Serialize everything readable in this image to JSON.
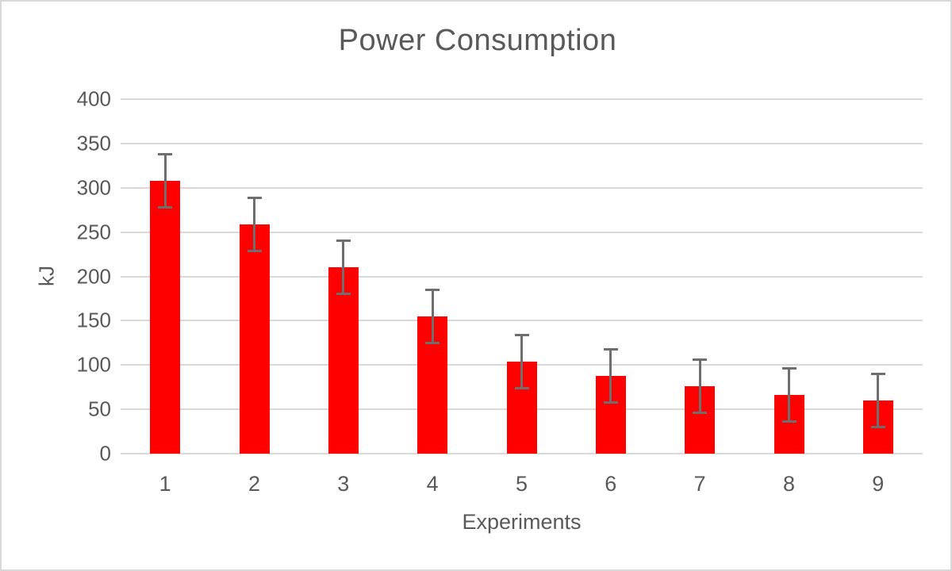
{
  "chart_data": {
    "type": "bar",
    "title": "Power Consumption",
    "xlabel": "Experiments",
    "ylabel": "kJ",
    "categories": [
      "1",
      "2",
      "3",
      "4",
      "5",
      "6",
      "7",
      "8",
      "9"
    ],
    "values": [
      308,
      259,
      210,
      155,
      104,
      88,
      76,
      66,
      60
    ],
    "error_bars": {
      "type": "symmetric",
      "value": 30
    },
    "ylim": [
      0,
      400
    ],
    "ytick_step": 50,
    "yticks": [
      0,
      50,
      100,
      150,
      200,
      250,
      300,
      350,
      400
    ],
    "grid": true,
    "legend": false,
    "colors": {
      "bar": "#ff0000",
      "error_bar": "#6e6e6e",
      "text": "#595959",
      "gridline": "#d9d9d9",
      "frame_border": "#d9d9d9",
      "background": "#ffffff"
    }
  }
}
